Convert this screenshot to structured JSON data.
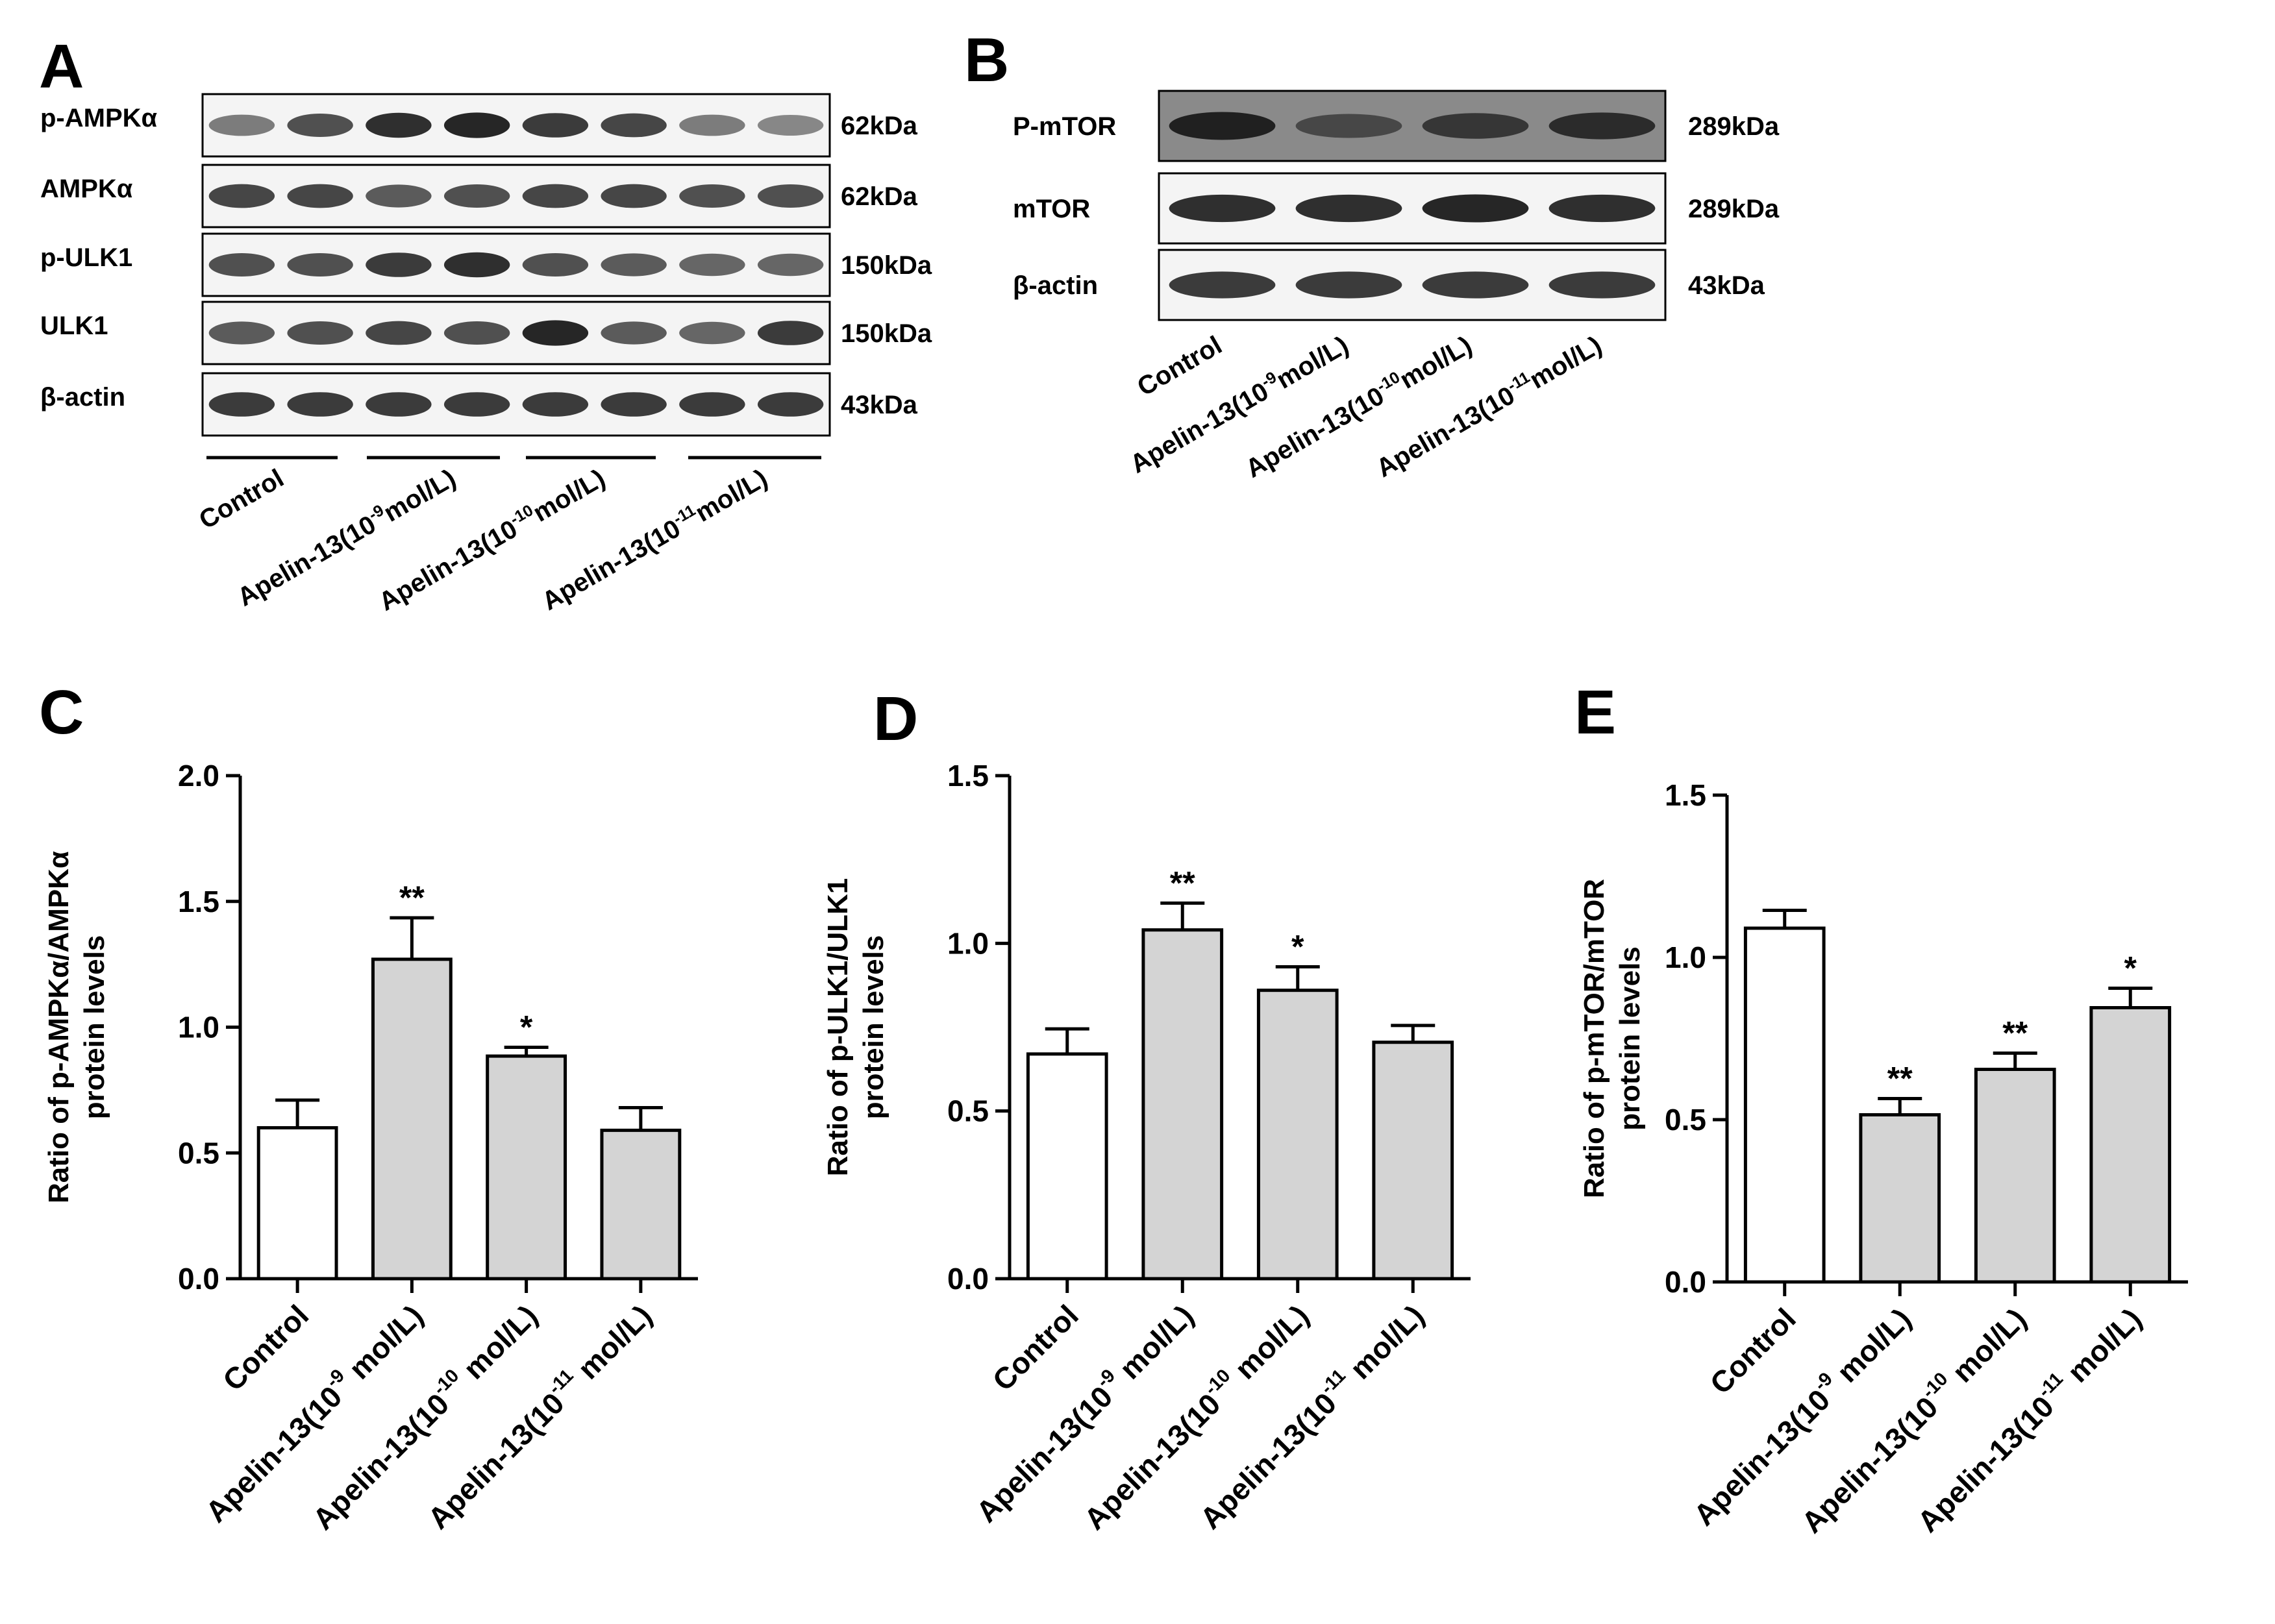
{
  "panel_labels": [
    "A",
    "B",
    "C",
    "D",
    "E"
  ],
  "blot_a": {
    "rows": [
      {
        "label": "p-AMPKα",
        "kda": "62kDa"
      },
      {
        "label": "AMPKα",
        "kda": "62kDa"
      },
      {
        "label": "p-ULK1",
        "kda": "150kDa"
      },
      {
        "label": "ULK1",
        "kda": "150kDa"
      },
      {
        "label": "β-actin",
        "kda": "43kDa"
      }
    ],
    "groups": [
      {
        "base": "Control",
        "sup": "",
        "tail": ""
      },
      {
        "base": "Apelin-13(10",
        "sup": "-9",
        "tail": "mol/L)"
      },
      {
        "base": "Apelin-13(10",
        "sup": "-10",
        "tail": "mol/L)"
      },
      {
        "base": "Apelin-13(10",
        "sup": "-11",
        "tail": "mol/L)"
      }
    ],
    "band_intensity": [
      [
        0.55,
        0.75,
        0.9,
        0.95,
        0.85,
        0.8,
        0.55,
        0.5
      ],
      [
        0.8,
        0.8,
        0.7,
        0.75,
        0.8,
        0.8,
        0.75,
        0.75
      ],
      [
        0.75,
        0.75,
        0.85,
        0.9,
        0.75,
        0.7,
        0.65,
        0.65
      ],
      [
        0.7,
        0.75,
        0.8,
        0.75,
        0.95,
        0.7,
        0.65,
        0.85
      ],
      [
        0.85,
        0.85,
        0.85,
        0.85,
        0.85,
        0.85,
        0.85,
        0.85
      ]
    ]
  },
  "blot_b": {
    "rows": [
      {
        "label": "P-mTOR",
        "kda": "289kDa"
      },
      {
        "label": "mTOR",
        "kda": "289kDa"
      },
      {
        "label": "β-actin",
        "kda": "43kDa"
      }
    ],
    "groups": [
      {
        "base": "Control",
        "sup": "",
        "tail": ""
      },
      {
        "base": "Apelin-13(10",
        "sup": "-9",
        "tail": "mol/L)"
      },
      {
        "base": "Apelin-13(10",
        "sup": "-10",
        "tail": "mol/L)"
      },
      {
        "base": "Apelin-13(10",
        "sup": "-11",
        "tail": "mol/L)"
      }
    ],
    "band_intensity": [
      [
        0.95,
        0.6,
        0.75,
        0.85
      ],
      [
        0.9,
        0.9,
        0.95,
        0.9
      ],
      [
        0.85,
        0.85,
        0.85,
        0.85
      ]
    ]
  },
  "colors": {
    "control_bar": "#ffffff",
    "treated_bar": "#d4d4d4",
    "band": "#1a1a1a",
    "axis": "#000000"
  },
  "chart_data": [
    {
      "type": "bar",
      "panel": "C",
      "ylabel_lines": [
        "Ratio of p-AMPKα/AMPKα",
        "protein levels"
      ],
      "categories": [
        {
          "base": "Control",
          "sup": "",
          "tail": ""
        },
        {
          "base": "Apelin-13(10",
          "sup": "-9",
          "tail": " mol/L)"
        },
        {
          "base": "Apelin-13(10",
          "sup": "-10",
          "tail": " mol/L)"
        },
        {
          "base": "Apelin-13(10",
          "sup": "-11",
          "tail": " mol/L)"
        }
      ],
      "values": [
        0.6,
        1.27,
        0.885,
        0.59
      ],
      "errors": [
        0.11,
        0.165,
        0.035,
        0.09
      ],
      "significance": [
        "",
        "**",
        "*",
        ""
      ],
      "ylim": [
        0,
        2.0
      ],
      "yticks": [
        "0.0",
        "0.5",
        "1.0",
        "1.5",
        "2.0"
      ]
    },
    {
      "type": "bar",
      "panel": "D",
      "ylabel_lines": [
        "Ratio of p-ULK1/ULK1",
        "protein levels"
      ],
      "categories": [
        {
          "base": "Control",
          "sup": "",
          "tail": ""
        },
        {
          "base": "Apelin-13(10",
          "sup": "-9",
          "tail": " mol/L)"
        },
        {
          "base": "Apelin-13(10",
          "sup": "-10",
          "tail": " mol/L)"
        },
        {
          "base": "Apelin-13(10",
          "sup": "-11",
          "tail": " mol/L)"
        }
      ],
      "values": [
        0.67,
        1.04,
        0.86,
        0.705
      ],
      "errors": [
        0.075,
        0.08,
        0.07,
        0.05
      ],
      "significance": [
        "",
        "**",
        "*",
        ""
      ],
      "ylim": [
        0,
        1.5
      ],
      "yticks": [
        "0.0",
        "0.5",
        "1.0",
        "1.5"
      ]
    },
    {
      "type": "bar",
      "panel": "E",
      "ylabel_lines": [
        "Ratio of p-mTOR/mTOR",
        "protein levels"
      ],
      "categories": [
        {
          "base": "Control",
          "sup": "",
          "tail": ""
        },
        {
          "base": "Apelin-13(10",
          "sup": "-9",
          "tail": " mol/L)"
        },
        {
          "base": "Apelin-13(10",
          "sup": "-10",
          "tail": " mol/L)"
        },
        {
          "base": "Apelin-13(10",
          "sup": "-11",
          "tail": " mol/L)"
        }
      ],
      "values": [
        1.09,
        0.515,
        0.655,
        0.845
      ],
      "errors": [
        0.055,
        0.05,
        0.05,
        0.06
      ],
      "significance": [
        "",
        "**",
        "**",
        "*"
      ],
      "ylim": [
        0,
        1.5
      ],
      "yticks": [
        "0.0",
        "0.5",
        "1.0",
        "1.5"
      ]
    }
  ]
}
